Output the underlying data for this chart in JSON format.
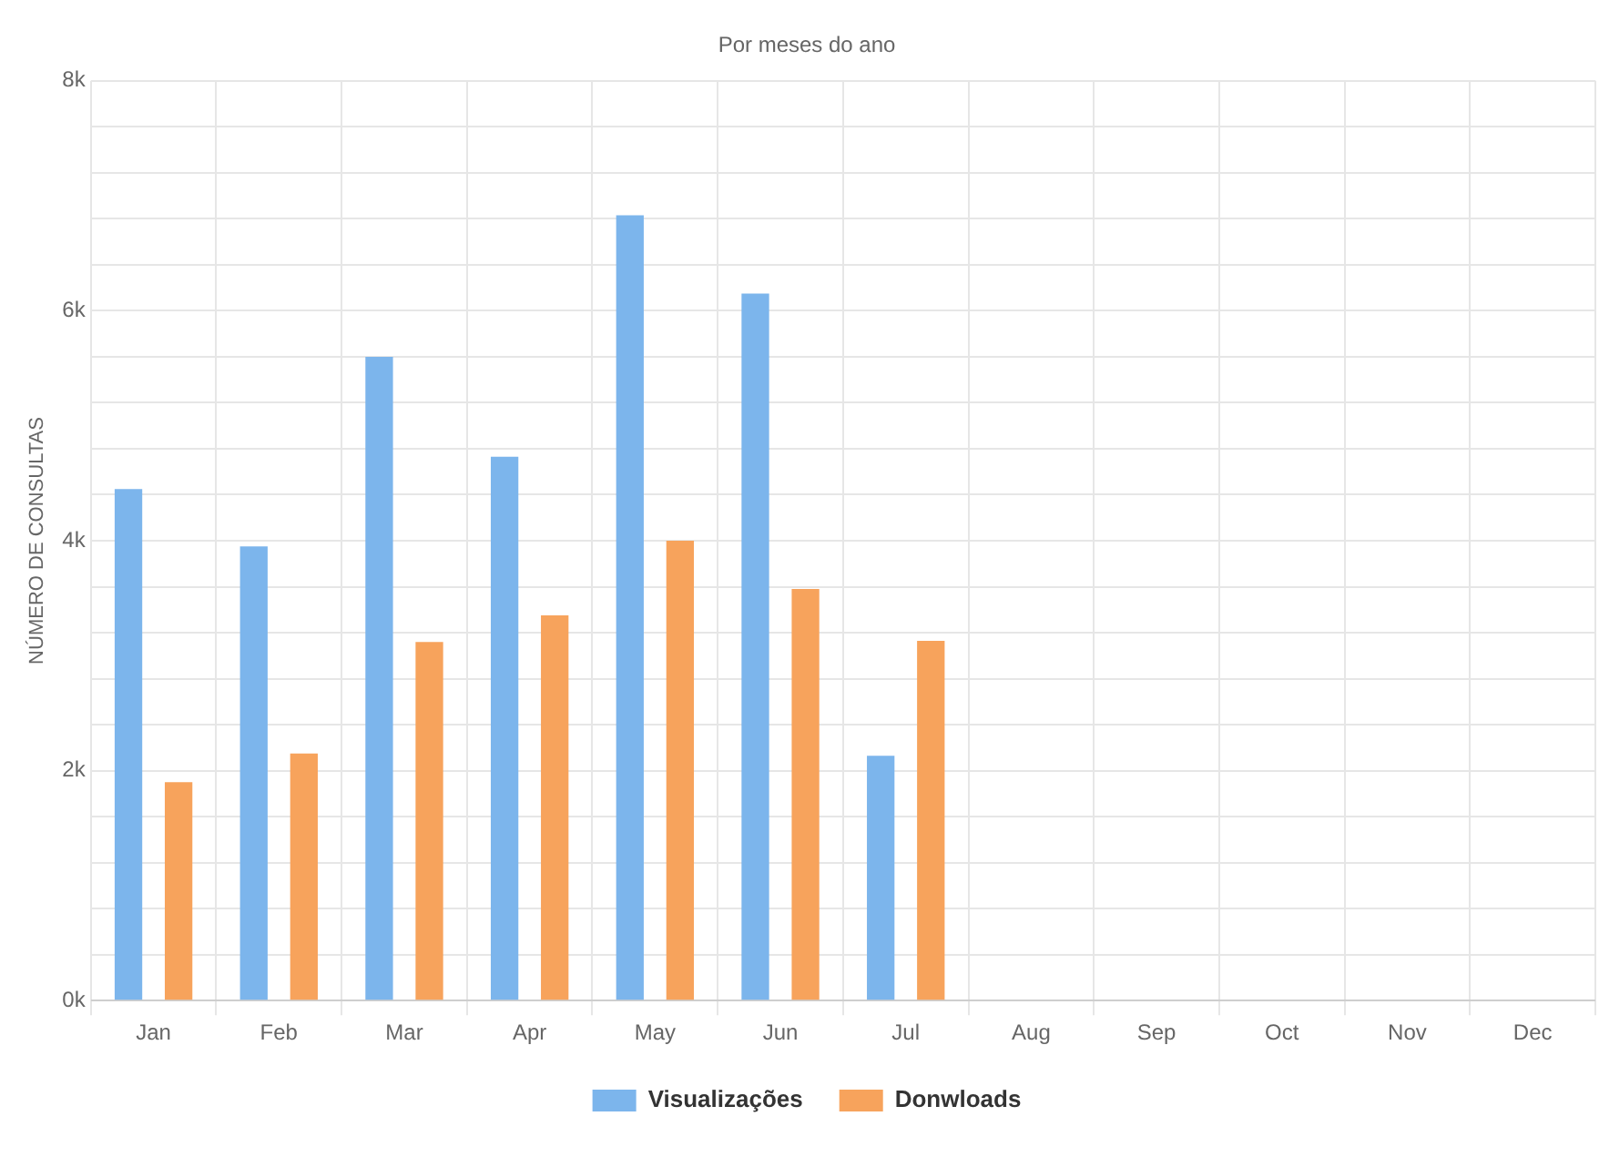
{
  "chart_data": {
    "type": "bar",
    "subtitle": "Por meses do ano",
    "ylabel": "NÚMERO DE CONSULTAS",
    "categories": [
      "Jan",
      "Feb",
      "Mar",
      "Apr",
      "May",
      "Jun",
      "Jul",
      "Aug",
      "Sep",
      "Oct",
      "Nov",
      "Dec"
    ],
    "series": [
      {
        "name": "Visualizações",
        "color": "#7cb5ec",
        "values": [
          4450,
          3950,
          5600,
          4730,
          6830,
          6150,
          2130,
          null,
          null,
          null,
          null,
          null
        ]
      },
      {
        "name": "Donwloads",
        "color": "#f7a35c",
        "values": [
          1900,
          2150,
          3120,
          3350,
          4000,
          3580,
          3130,
          null,
          null,
          null,
          null,
          null
        ]
      }
    ],
    "ylim": [
      0,
      8000
    ],
    "yticks": [
      {
        "value": 0,
        "label": "0k"
      },
      {
        "value": 400,
        "label": null
      },
      {
        "value": 800,
        "label": null
      },
      {
        "value": 1200,
        "label": null
      },
      {
        "value": 1600,
        "label": null
      },
      {
        "value": 2000,
        "label": "2k"
      },
      {
        "value": 2400,
        "label": null
      },
      {
        "value": 2800,
        "label": null
      },
      {
        "value": 3200,
        "label": null
      },
      {
        "value": 3600,
        "label": null
      },
      {
        "value": 4000,
        "label": "4k"
      },
      {
        "value": 4400,
        "label": null
      },
      {
        "value": 4800,
        "label": null
      },
      {
        "value": 5200,
        "label": null
      },
      {
        "value": 5600,
        "label": null
      },
      {
        "value": 6000,
        "label": "6k"
      },
      {
        "value": 6400,
        "label": null
      },
      {
        "value": 6800,
        "label": null
      },
      {
        "value": 7200,
        "label": null
      },
      {
        "value": 7600,
        "label": null
      },
      {
        "value": 8000,
        "label": "8k"
      }
    ],
    "grid": true,
    "legend": "bottom"
  }
}
